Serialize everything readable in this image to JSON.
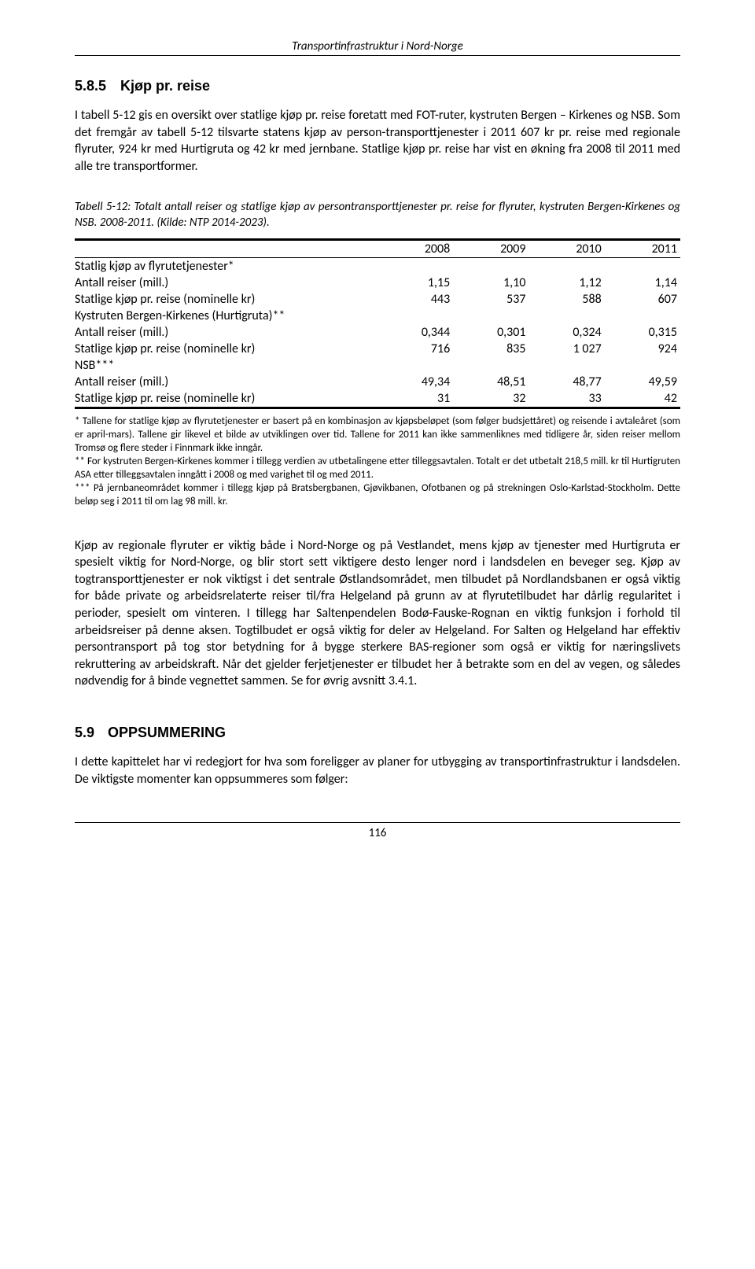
{
  "header": {
    "running_title": "Transportinfrastruktur i Nord-Norge"
  },
  "section585": {
    "number": "5.8.5",
    "title": "Kjøp pr. reise",
    "paragraph": "I tabell 5-12 gis en oversikt over statlige kjøp pr. reise foretatt med FOT-ruter, kystruten Bergen – Kirkenes og NSB. Som det fremgår av tabell 5-12 tilsvarte statens kjøp av person-transporttjenester i 2011 607 kr pr. reise med regionale flyruter, 924 kr med Hurtigruta og 42 kr med jernbane. Statlige kjøp pr. reise har vist en økning fra 2008 til 2011 med alle tre transportformer."
  },
  "table": {
    "caption": "Tabell 5-12: Totalt antall reiser og statlige kjøp av persontransporttjenester pr. reise for flyruter, kystruten Bergen-Kirkenes og NSB. 2008-2011. (Kilde: NTP 2014-2023).",
    "years": [
      "2008",
      "2009",
      "2010",
      "2011"
    ],
    "groups": [
      {
        "header": "Statlig kjøp av flyrutetjenester*",
        "rows": [
          {
            "label": "Antall reiser (mill.)",
            "values": [
              "1,15",
              "1,10",
              "1,12",
              "1,14"
            ]
          },
          {
            "label": "Statlige kjøp pr. reise (nominelle kr)",
            "values": [
              "443",
              "537",
              "588",
              "607"
            ]
          }
        ]
      },
      {
        "header": "Kystruten Bergen-Kirkenes (Hurtigruta)**",
        "rows": [
          {
            "label": "Antall reiser (mill.)",
            "values": [
              "0,344",
              "0,301",
              "0,324",
              "0,315"
            ]
          },
          {
            "label": "Statlige kjøp pr. reise (nominelle kr)",
            "values": [
              "716",
              "835",
              "1 027",
              "924"
            ]
          }
        ]
      },
      {
        "header": "NSB***",
        "rows": [
          {
            "label": "Antall reiser (mill.)",
            "values": [
              "49,34",
              "48,51",
              "48,77",
              "49,59"
            ]
          },
          {
            "label": "Statlige kjøp pr. reise (nominelle kr)",
            "values": [
              "31",
              "32",
              "33",
              "42"
            ]
          }
        ]
      }
    ],
    "footnotes": [
      "* Tallene for statlige kjøp av flyrutetjenester er basert på en kombinasjon av kjøpsbeløpet (som følger budsjettåret) og reisende i avtaleåret (som er april-mars). Tallene gir likevel et bilde av utviklingen over tid. Tallene for 2011 kan ikke sammenliknes med tidligere år, siden reiser mellom Tromsø og flere steder i Finnmark ikke inngår.",
      "** For kystruten Bergen-Kirkenes kommer i tillegg verdien av utbetalingene etter tilleggsavtalen. Totalt er det utbetalt 218,5 mill. kr til Hurtigruten ASA etter tilleggsavtalen inngått i 2008 og med varighet til og med 2011.",
      "*** På jernbaneområdet kommer i tillegg kjøp på Bratsbergbanen, Gjøvikbanen, Ofotbanen og på strekningen Oslo-Karlstad-Stockholm. Dette beløp seg i 2011 til om lag 98 mill. kr."
    ]
  },
  "para_after_table": "Kjøp av regionale flyruter er viktig både i Nord-Norge og på Vestlandet, mens kjøp av tjenester med Hurtigruta er spesielt viktig for Nord-Norge, og blir stort sett viktigere desto lenger nord i landsdelen en beveger seg. Kjøp av togtransporttjenester er nok viktigst i det sentrale Østlandsområdet, men tilbudet på Nordlandsbanen er også viktig for både private og arbeidsrelaterte reiser til/fra Helgeland på grunn av at flyrutetilbudet har dårlig regularitet i perioder, spesielt om vinteren. I tillegg har Saltenpendelen Bodø-Fauske-Rognan en viktig funksjon i forhold til arbeidsreiser på denne aksen. Togtilbudet er også viktig for deler av Helgeland. For Salten og Helgeland har effektiv persontransport på tog stor betydning for å bygge sterkere BAS-regioner som også er viktig for næringslivets rekruttering av arbeidskraft. Når det gjelder ferjetjenester er tilbudet her å betrakte som en del av vegen, og således nødvendig for å binde vegnettet sammen. Se for øvrig avsnitt 3.4.1.",
  "section59": {
    "number": "5.9",
    "title": "OPPSUMMERING",
    "paragraph": "I dette kapittelet har vi redegjort for hva som foreligger av planer for utbygging av transportinfrastruktur i landsdelen. De viktigste momenter kan oppsummeres som følger:"
  },
  "page_number": "116"
}
